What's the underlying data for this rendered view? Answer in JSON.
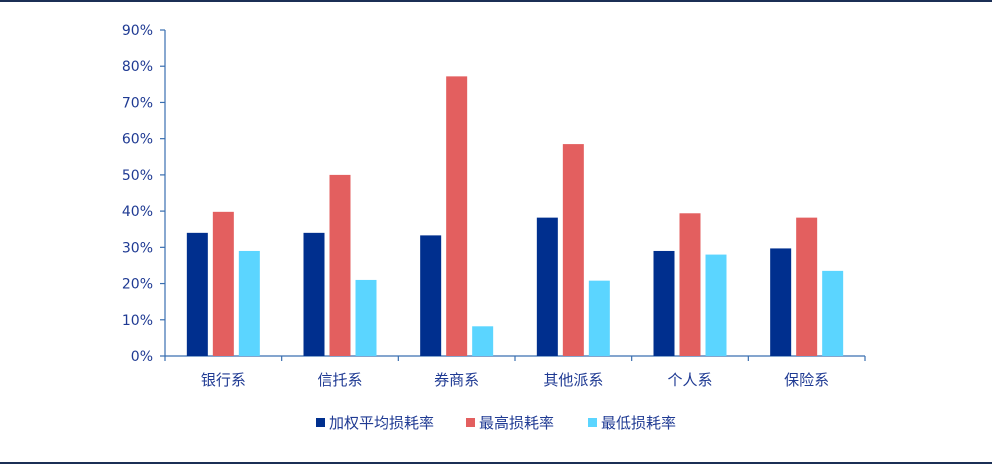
{
  "chart_data": {
    "type": "bar",
    "categories": [
      "银行系",
      "信托系",
      "券商系",
      "其他派系",
      "个人系",
      "保险系"
    ],
    "series": [
      {
        "name": "加权平均损耗率",
        "color": "#002f8e",
        "values": [
          34,
          34,
          33.3,
          38.2,
          29,
          29.7
        ]
      },
      {
        "name": "最高损耗率",
        "color": "#e35f5f",
        "values": [
          39.8,
          50,
          77.2,
          58.5,
          39.4,
          38.2
        ]
      },
      {
        "name": "最低损耗率",
        "color": "#5bd5ff",
        "values": [
          29,
          21,
          8.2,
          20.8,
          28,
          23.5
        ]
      }
    ],
    "yticks": [
      "0%",
      "10%",
      "20%",
      "30%",
      "40%",
      "50%",
      "60%",
      "70%",
      "80%",
      "90%"
    ],
    "ylim": [
      0,
      90
    ],
    "legend_position": "bottom",
    "axis_color": "#3a6fb0"
  }
}
